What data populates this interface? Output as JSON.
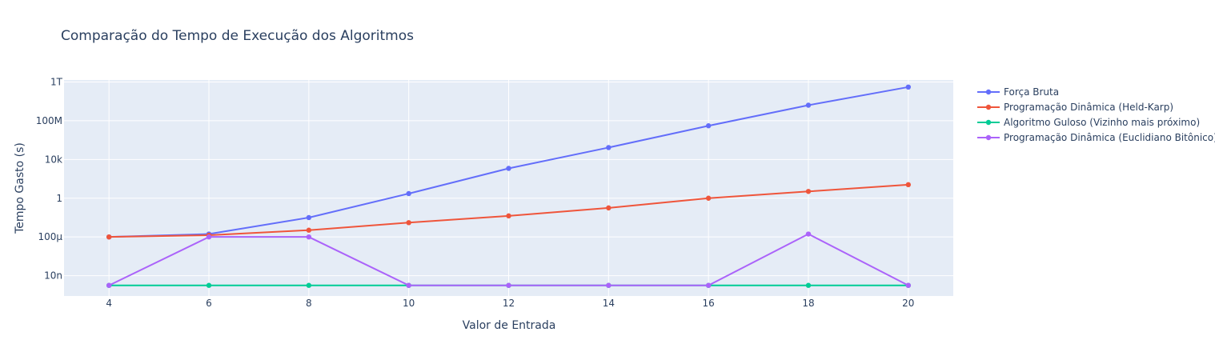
{
  "chart_data": {
    "type": "line",
    "title": "Comparação do Tempo de Execução dos Algoritmos",
    "xlabel": "Valor de Entrada",
    "ylabel": "Tempo Gasto (s)",
    "y_scale": "log",
    "x": [
      4,
      6,
      8,
      10,
      12,
      14,
      16,
      18,
      20
    ],
    "x_ticks": [
      "4",
      "6",
      "8",
      "10",
      "12",
      "14",
      "16",
      "18",
      "20"
    ],
    "y_ticks": [
      {
        "value": 1e-08,
        "label": "10n"
      },
      {
        "value": 0.0001,
        "label": "100µ"
      },
      {
        "value": 1,
        "label": "1"
      },
      {
        "value": 10000.0,
        "label": "10k"
      },
      {
        "value": 100000000.0,
        "label": "100M"
      },
      {
        "value": 1000000000000.0,
        "label": "1T"
      }
    ],
    "xlim": [
      3.1,
      20.9
    ],
    "ylim": [
      8e-11,
      1600000000000.0
    ],
    "grid": true,
    "legend_position": "right",
    "series": [
      {
        "name": "Força Bruta",
        "color": "#636efa",
        "values": [
          0.0001,
          0.0002,
          0.01,
          3,
          1200,
          170000,
          30000000.0,
          4000000000.0,
          300000000000.0
        ]
      },
      {
        "name": "Programação Dinâmica (Held-Karp)",
        "color": "#ef553b",
        "values": [
          0.0001,
          0.00015,
          0.0005,
          0.003,
          0.015,
          0.1,
          1,
          5,
          25
        ]
      },
      {
        "name": "Algoritmo Guloso (Vizinho mais próximo)",
        "color": "#00cc96",
        "values": [
          1e-09,
          1e-09,
          1e-09,
          1e-09,
          1e-09,
          1e-09,
          1e-09,
          1e-09,
          1e-09
        ]
      },
      {
        "name": "Programação Dinâmica (Euclidiano Bitônico)",
        "color": "#ab63fa",
        "values": [
          1e-09,
          0.0001,
          0.0001,
          1e-09,
          1e-09,
          1e-09,
          1e-09,
          0.0002,
          1e-09
        ]
      }
    ]
  }
}
